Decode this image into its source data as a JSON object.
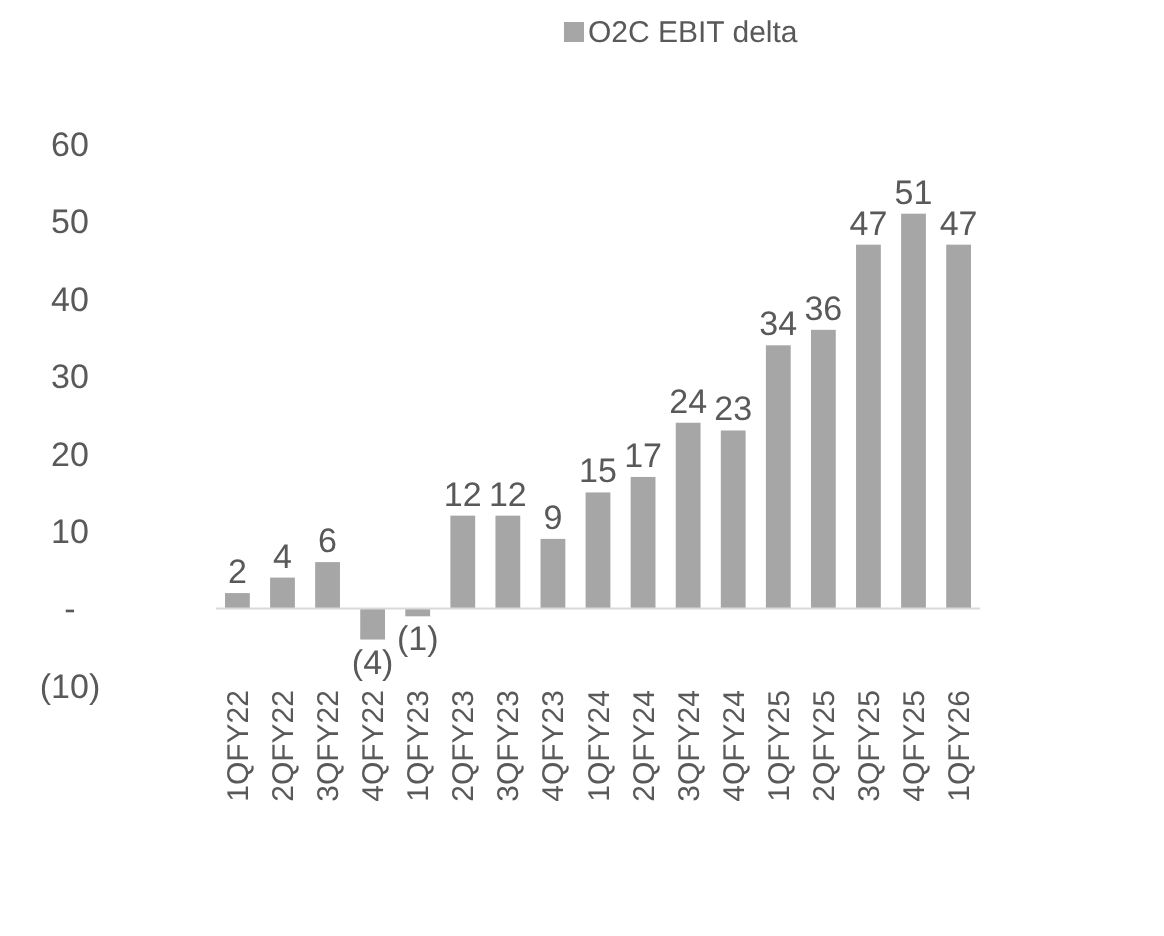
{
  "chart_data": {
    "type": "bar",
    "categories": [
      "1QFY22",
      "2QFY22",
      "3QFY22",
      "4QFY22",
      "1QFY23",
      "2QFY23",
      "3QFY23",
      "4QFY23",
      "1QFY24",
      "2QFY24",
      "3QFY24",
      "4QFY24",
      "1QFY25",
      "2QFY25",
      "3QFY25",
      "4QFY25",
      "1QFY26"
    ],
    "series": [
      {
        "name": "O2C EBIT delta",
        "color": "#a6a6a6",
        "values": [
          2,
          4,
          6,
          -4,
          -1,
          12,
          12,
          9,
          15,
          17,
          24,
          23,
          34,
          36,
          47,
          51,
          47
        ]
      }
    ],
    "value_labels": [
      "2",
      "4",
      "6",
      "(4)",
      "(1)",
      "12",
      "12",
      "9",
      "15",
      "17",
      "24",
      "23",
      "34",
      "36",
      "47",
      "51",
      "47"
    ],
    "ylim": [
      -10,
      60
    ],
    "yticks": [
      {
        "value": -10,
        "label": "(10)"
      },
      {
        "value": 0,
        "label": "-"
      },
      10,
      20,
      30,
      40,
      50,
      60
    ],
    "legend": "top"
  }
}
